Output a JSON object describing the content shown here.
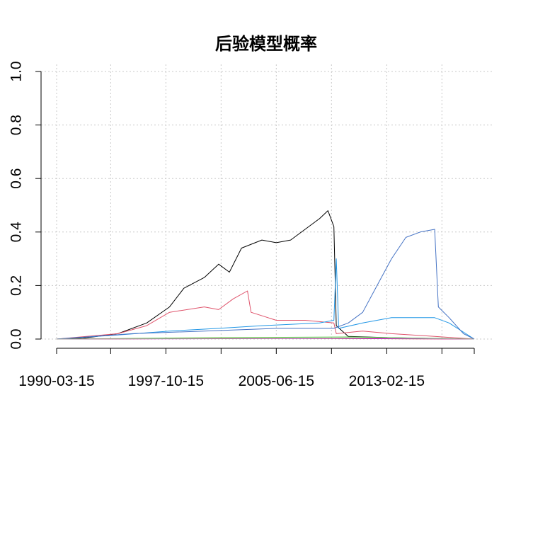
{
  "chart_data": {
    "type": "line",
    "title": "后验模型概率",
    "xlabel": "",
    "ylabel": "",
    "ylim": [
      0,
      1
    ],
    "xlim": [
      "1990-03-15",
      "2019-03-15"
    ],
    "x_tick_labels": [
      "1990-03-15",
      "1997-10-15",
      "2005-06-15",
      "2013-02-15"
    ],
    "y_tick_labels": [
      "0.0",
      "0.2",
      "0.4",
      "0.6",
      "0.8",
      "1.0"
    ],
    "grid": true,
    "series": [
      {
        "color": "#000000",
        "points": [
          [
            "1990-03-15",
            0.0
          ],
          [
            "1992-01-15",
            0.003
          ],
          [
            "1994-06-15",
            0.02
          ],
          [
            "1996-06-15",
            0.06
          ],
          [
            "1998-01-15",
            0.12
          ],
          [
            "1999-01-15",
            0.19
          ],
          [
            "2000-06-15",
            0.23
          ],
          [
            "2001-06-15",
            0.28
          ],
          [
            "2002-03-15",
            0.25
          ],
          [
            "2003-01-15",
            0.34
          ],
          [
            "2004-06-15",
            0.37
          ],
          [
            "2005-06-15",
            0.36
          ],
          [
            "2006-06-15",
            0.37
          ],
          [
            "2007-06-15",
            0.41
          ],
          [
            "2008-06-15",
            0.45
          ],
          [
            "2009-01-15",
            0.48
          ],
          [
            "2009-06-15",
            0.42
          ],
          [
            "2009-08-15",
            0.05
          ],
          [
            "2010-06-15",
            0.01
          ],
          [
            "2013-06-15",
            0.005
          ],
          [
            "2019-03-15",
            0.0
          ]
        ]
      },
      {
        "color": "#DF536B",
        "points": [
          [
            "1990-03-15",
            0.0
          ],
          [
            "1994-06-15",
            0.02
          ],
          [
            "1996-06-15",
            0.05
          ],
          [
            "1998-01-15",
            0.1
          ],
          [
            "2000-06-15",
            0.12
          ],
          [
            "2001-06-15",
            0.11
          ],
          [
            "2002-06-15",
            0.15
          ],
          [
            "2003-06-15",
            0.18
          ],
          [
            "2003-09-15",
            0.1
          ],
          [
            "2005-06-15",
            0.07
          ],
          [
            "2007-06-15",
            0.07
          ],
          [
            "2009-06-15",
            0.06
          ],
          [
            "2009-08-15",
            0.02
          ],
          [
            "2011-06-15",
            0.03
          ],
          [
            "2013-06-15",
            0.02
          ],
          [
            "2016-06-15",
            0.01
          ],
          [
            "2019-03-15",
            0.0
          ]
        ]
      },
      {
        "color": "#2297E6",
        "points": [
          [
            "1990-03-15",
            0.0
          ],
          [
            "1994-06-15",
            0.015
          ],
          [
            "1998-01-15",
            0.03
          ],
          [
            "2001-06-15",
            0.04
          ],
          [
            "2004-06-15",
            0.05
          ],
          [
            "2008-06-15",
            0.06
          ],
          [
            "2009-06-15",
            0.07
          ],
          [
            "2009-08-15",
            0.3
          ],
          [
            "2009-10-15",
            0.04
          ],
          [
            "2011-06-15",
            0.06
          ],
          [
            "2013-06-15",
            0.08
          ],
          [
            "2016-06-15",
            0.08
          ],
          [
            "2017-06-15",
            0.06
          ],
          [
            "2019-03-15",
            0.0
          ]
        ]
      },
      {
        "color": "#4472C4",
        "points": [
          [
            "1990-03-15",
            0.0
          ],
          [
            "1995-06-15",
            0.02
          ],
          [
            "2000-06-15",
            0.03
          ],
          [
            "2005-06-15",
            0.04
          ],
          [
            "2009-06-15",
            0.04
          ],
          [
            "2010-06-15",
            0.06
          ],
          [
            "2011-06-15",
            0.1
          ],
          [
            "2012-06-15",
            0.2
          ],
          [
            "2013-06-15",
            0.3
          ],
          [
            "2014-06-15",
            0.38
          ],
          [
            "2015-06-15",
            0.4
          ],
          [
            "2016-06-15",
            0.41
          ],
          [
            "2016-09-15",
            0.12
          ],
          [
            "2017-06-15",
            0.08
          ],
          [
            "2018-06-15",
            0.02
          ],
          [
            "2019-03-15",
            0.0
          ]
        ]
      },
      {
        "color": "#61D04F",
        "points": [
          [
            "1990-03-15",
            0.0
          ],
          [
            "2000-06-15",
            0.005
          ],
          [
            "2010-06-15",
            0.008
          ],
          [
            "2019-03-15",
            0.0
          ]
        ]
      },
      {
        "color": "#F5C710",
        "points": [
          [
            "1990-03-15",
            0.0
          ],
          [
            "2005-06-15",
            0.003
          ],
          [
            "2019-03-15",
            0.0
          ]
        ]
      },
      {
        "color": "#CD0BBC",
        "points": [
          [
            "1990-03-15",
            0.0
          ],
          [
            "2009-06-15",
            0.002
          ],
          [
            "2019-03-15",
            0.0
          ]
        ]
      },
      {
        "color": "#9E9E9E",
        "points": [
          [
            "1990-03-15",
            0.0
          ],
          [
            "2012-06-15",
            0.004
          ],
          [
            "2019-03-15",
            0.0
          ]
        ]
      }
    ]
  }
}
